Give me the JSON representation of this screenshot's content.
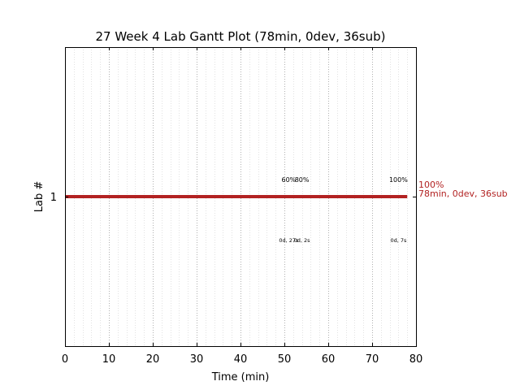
{
  "chart_data": {
    "type": "gantt",
    "title": "27 Week 4 Lab Gantt Plot (78min, 0dev, 36sub)",
    "xlabel": "Time (min)",
    "ylabel": "Lab #",
    "xlim": [
      0,
      80
    ],
    "xticks": [
      "0",
      "10",
      "20",
      "30",
      "40",
      "50",
      "60",
      "70",
      "80"
    ],
    "grid": true,
    "lanes": [
      {
        "label": "1",
        "start": 0,
        "end": 78,
        "color": "#b22222",
        "end_label_line1": "100%",
        "end_label_line2": "78min, 0dev, 36sub",
        "milestones": [
          {
            "x": 51,
            "pct": "60%",
            "detail": "0d, 27s"
          },
          {
            "x": 54,
            "pct": "80%",
            "detail": "0d, 2s"
          },
          {
            "x": 76,
            "pct": "100%",
            "detail": "0d, 7s"
          }
        ]
      }
    ]
  }
}
